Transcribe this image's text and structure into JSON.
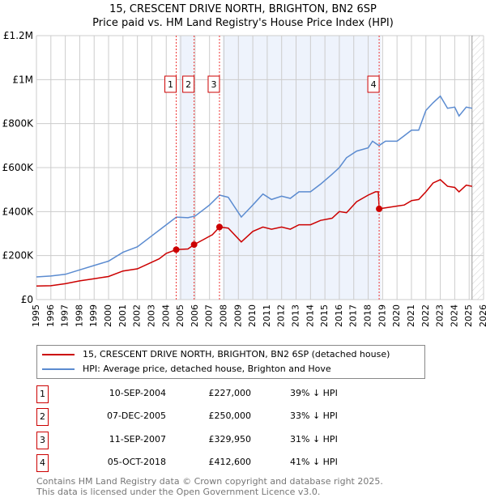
{
  "chart_data": {
    "type": "line",
    "title": "15, CRESCENT DRIVE NORTH, BRIGHTON, BN2 6SP",
    "subtitle": "Price paid vs. HM Land Registry's House Price Index (HPI)",
    "xlim": [
      1995,
      2026
    ],
    "ylim": [
      0,
      1200000
    ],
    "x_ticks": [
      "1995",
      "1996",
      "1997",
      "1998",
      "1999",
      "2000",
      "2001",
      "2002",
      "2003",
      "2004",
      "2005",
      "2006",
      "2007",
      "2008",
      "2009",
      "2010",
      "2011",
      "2012",
      "2013",
      "2014",
      "2015",
      "2016",
      "2017",
      "2018",
      "2019",
      "2020",
      "2021",
      "2022",
      "2023",
      "2024",
      "2025",
      "2026"
    ],
    "y_ticks": [
      {
        "v": 0,
        "label": "£0"
      },
      {
        "v": 200000,
        "label": "£200K"
      },
      {
        "v": 400000,
        "label": "£400K"
      },
      {
        "v": 600000,
        "label": "£600K"
      },
      {
        "v": 800000,
        "label": "£800K"
      },
      {
        "v": 1000000,
        "label": "£1M"
      },
      {
        "v": 1200000,
        "label": "£1.2M"
      }
    ],
    "series": [
      {
        "name": "15, CRESCENT DRIVE NORTH, BRIGHTON, BN2 6SP (detached house)",
        "color": "#cc0000",
        "x": [
          1995,
          1996,
          1997,
          1998,
          1999,
          2000,
          2001,
          2002,
          2003,
          2003.5,
          2004,
          2004.7,
          2005.5,
          2005.93,
          2006.5,
          2007.2,
          2007.7,
          2008.3,
          2009.2,
          2010,
          2010.7,
          2011.3,
          2012,
          2012.6,
          2013.2,
          2014,
          2014.7,
          2015.5,
          2016,
          2016.5,
          2017.2,
          2018,
          2018.5,
          2018.7,
          2018.76,
          2019.5,
          2020,
          2020.5,
          2021,
          2021.5,
          2022,
          2022.5,
          2023,
          2023.5,
          2024,
          2024.3,
          2024.8,
          2025.2
        ],
        "y": [
          62000,
          63000,
          72000,
          85000,
          95000,
          105000,
          130000,
          140000,
          170000,
          185000,
          210000,
          227000,
          230000,
          250000,
          270000,
          295000,
          330000,
          325000,
          262000,
          310000,
          330000,
          320000,
          330000,
          320000,
          340000,
          340000,
          360000,
          370000,
          400000,
          395000,
          445000,
          475000,
          490000,
          490000,
          412600,
          420000,
          425000,
          430000,
          450000,
          455000,
          490000,
          530000,
          545000,
          515000,
          510000,
          490000,
          520000,
          515000
        ]
      },
      {
        "name": "HPI: Average price, detached house, Brighton and Hove",
        "color": "#5b8bd0",
        "x": [
          1995,
          1996,
          1997,
          1998,
          1999,
          2000,
          2001,
          2002,
          2003,
          2004,
          2004.7,
          2005.5,
          2006,
          2007,
          2007.7,
          2008.3,
          2009.2,
          2010,
          2010.7,
          2011.3,
          2012,
          2012.6,
          2013.2,
          2014,
          2014.7,
          2015.5,
          2016,
          2016.5,
          2017.2,
          2018,
          2018.3,
          2018.75,
          2019.2,
          2020,
          2020.5,
          2021,
          2021.5,
          2022,
          2022.5,
          2023,
          2023.5,
          2024,
          2024.3,
          2024.8,
          2025.2
        ],
        "y": [
          103000,
          107000,
          115000,
          135000,
          155000,
          175000,
          215000,
          240000,
          290000,
          340000,
          375000,
          372000,
          380000,
          430000,
          475000,
          465000,
          375000,
          430000,
          480000,
          455000,
          470000,
          460000,
          490000,
          490000,
          525000,
          570000,
          600000,
          645000,
          675000,
          690000,
          720000,
          700000,
          720000,
          720000,
          745000,
          770000,
          770000,
          860000,
          895000,
          925000,
          870000,
          875000,
          835000,
          875000,
          870000
        ]
      }
    ],
    "sales": [
      {
        "n": "1",
        "x": 2004.69,
        "y": 227000,
        "date": "10-SEP-2004",
        "price": "£227,000",
        "hpi": "39% ↓ HPI"
      },
      {
        "n": "2",
        "x": 2005.93,
        "y": 250000,
        "date": "07-DEC-2005",
        "price": "£250,000",
        "hpi": "33% ↓ HPI"
      },
      {
        "n": "3",
        "x": 2007.69,
        "y": 329950,
        "date": "11-SEP-2007",
        "price": "£329,950",
        "hpi": "31% ↓ HPI"
      },
      {
        "n": "4",
        "x": 2018.76,
        "y": 412600,
        "date": "05-OCT-2018",
        "price": "£412,600",
        "hpi": "41% ↓ HPI"
      }
    ],
    "shaded_ranges": [
      [
        2004.9,
        2005.93
      ],
      [
        2007.9,
        2018.9
      ]
    ],
    "forecast_hatch_from": 2025.2
  },
  "footer": {
    "line1": "Contains HM Land Registry data © Crown copyright and database right 2025.",
    "line2": "This data is licensed under the Open Government Licence v3.0."
  }
}
